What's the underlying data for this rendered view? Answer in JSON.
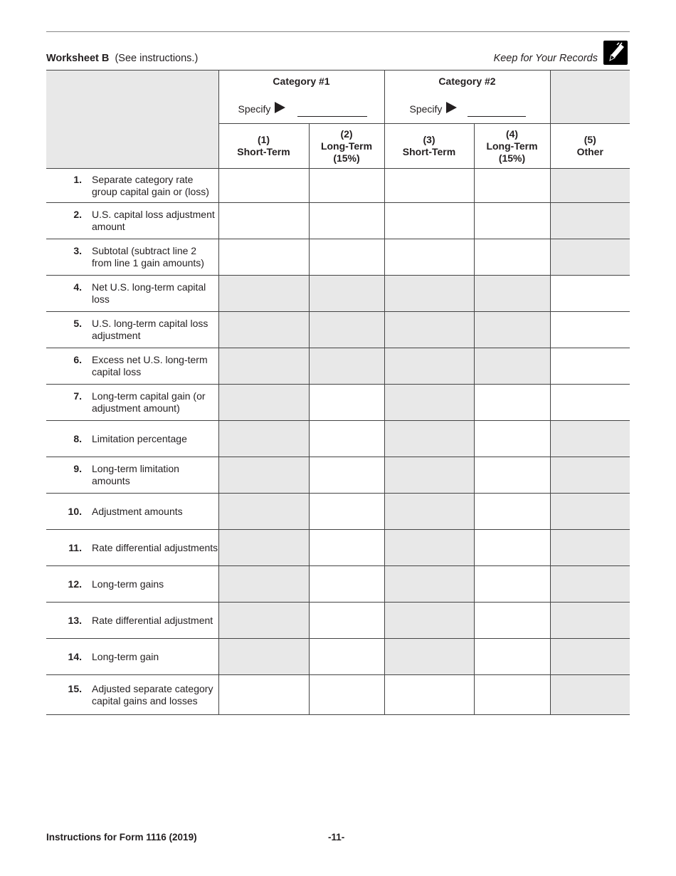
{
  "header": {
    "title": "Worksheet B",
    "subtitle": "(See instructions.)",
    "keep": "Keep for Your Records",
    "icon": "pencil-icon"
  },
  "categories": [
    {
      "label": "Category #1",
      "specify": "Specify"
    },
    {
      "label": "Category #2",
      "specify": "Specify"
    }
  ],
  "columns": [
    {
      "num": "(1)",
      "label": "Short-Term",
      "sub": ""
    },
    {
      "num": "(2)",
      "label": "Long-Term",
      "sub": "(15%)"
    },
    {
      "num": "(3)",
      "label": "Short-Term",
      "sub": ""
    },
    {
      "num": "(4)",
      "label": "Long-Term",
      "sub": "(15%)"
    },
    {
      "num": "(5)",
      "label": "Other",
      "sub": ""
    }
  ],
  "rows": [
    {
      "num": "1.",
      "label": "Separate category rate group capital gain or (loss)",
      "shaded": [
        0,
        0,
        0,
        0,
        1
      ]
    },
    {
      "num": "2.",
      "label": "U.S. capital loss adjustment amount",
      "shaded": [
        0,
        0,
        0,
        0,
        1
      ]
    },
    {
      "num": "3.",
      "label": "Subtotal (subtract line 2 from line 1 gain amounts)",
      "shaded": [
        0,
        0,
        0,
        0,
        1
      ]
    },
    {
      "num": "4.",
      "label": "Net U.S. long-term capital loss",
      "shaded": [
        1,
        1,
        1,
        1,
        0
      ]
    },
    {
      "num": "5.",
      "label": "U.S. long-term capital loss adjustment",
      "shaded": [
        1,
        1,
        1,
        1,
        0
      ]
    },
    {
      "num": "6.",
      "label": "Excess net U.S. long-term capital loss",
      "shaded": [
        1,
        1,
        1,
        1,
        0
      ]
    },
    {
      "num": "7.",
      "label": "Long-term capital gain (or adjustment amount)",
      "shaded": [
        1,
        0,
        1,
        0,
        0
      ]
    },
    {
      "num": "8.",
      "label": "Limitation percentage",
      "shaded": [
        1,
        0,
        1,
        0,
        1
      ]
    },
    {
      "num": "9.",
      "label": "Long-term limitation amounts",
      "shaded": [
        1,
        0,
        1,
        0,
        1
      ]
    },
    {
      "num": "10.",
      "label": "Adjustment amounts",
      "shaded": [
        1,
        0,
        1,
        0,
        1
      ]
    },
    {
      "num": "11.",
      "label": "Rate differential adjustments",
      "shaded": [
        1,
        0,
        1,
        0,
        1
      ]
    },
    {
      "num": "12.",
      "label": "Long-term gains",
      "shaded": [
        1,
        0,
        1,
        0,
        1
      ]
    },
    {
      "num": "13.",
      "label": "Rate differential adjustment",
      "shaded": [
        1,
        0,
        1,
        0,
        1
      ]
    },
    {
      "num": "14.",
      "label": "Long-term gain",
      "shaded": [
        1,
        0,
        1,
        0,
        1
      ]
    },
    {
      "num": "15.",
      "label": "Adjusted separate category capital gains and losses",
      "shaded": [
        0,
        0,
        0,
        0,
        1
      ]
    }
  ],
  "footer": {
    "left": "Instructions for Form 1116 (2019)",
    "page": "-11-"
  }
}
